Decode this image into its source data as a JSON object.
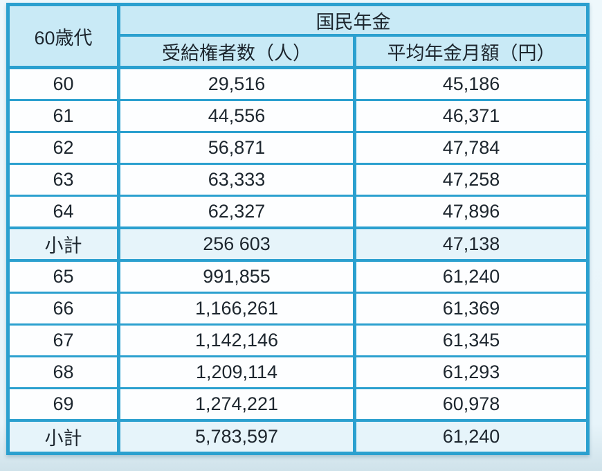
{
  "table": {
    "corner_header": "60歳代",
    "group_header": "国民年金",
    "col_headers": {
      "recipients": "受給権者数（人）",
      "avg_monthly": "平均年金月額（円）"
    },
    "rows": [
      {
        "age": "60",
        "recipients": "29,516",
        "avg_monthly": "45,186"
      },
      {
        "age": "61",
        "recipients": "44,556",
        "avg_monthly": "46,371"
      },
      {
        "age": "62",
        "recipients": "56,871",
        "avg_monthly": "47,784"
      },
      {
        "age": "63",
        "recipients": "63,333",
        "avg_monthly": "47,258"
      },
      {
        "age": "64",
        "recipients": "62,327",
        "avg_monthly": "47,896"
      },
      {
        "age": "小計",
        "recipients": "256 603",
        "avg_monthly": "47,138"
      },
      {
        "age": "65",
        "recipients": "991,855",
        "avg_monthly": "61,240"
      },
      {
        "age": "66",
        "recipients": "1,166,261",
        "avg_monthly": "61,369"
      },
      {
        "age": "67",
        "recipients": "1,142,146",
        "avg_monthly": "61,345"
      },
      {
        "age": "68",
        "recipients": "1,209,114",
        "avg_monthly": "61,293"
      },
      {
        "age": "69",
        "recipients": "1,274,221",
        "avg_monthly": "60,978"
      },
      {
        "age": "小計",
        "recipients": "5,783,597",
        "avg_monthly": "61,240"
      }
    ]
  },
  "colors": {
    "border": "#2ba0cf",
    "header_bg": "#c9eaf6",
    "subtotal_bg": "#e6f4fa",
    "cell_bg": "#fdfeff",
    "page_bg": "#eaf6fb",
    "text": "#1d262e"
  },
  "chart_data": {
    "type": "table",
    "title": "国民年金",
    "corner_label": "60歳代",
    "columns": [
      "60歳代",
      "受給権者数（人）",
      "平均年金月額（円）"
    ],
    "rows": [
      [
        "60",
        "29,516",
        "45,186"
      ],
      [
        "61",
        "44,556",
        "46,371"
      ],
      [
        "62",
        "56,871",
        "47,784"
      ],
      [
        "63",
        "63,333",
        "47,258"
      ],
      [
        "64",
        "62,327",
        "47,896"
      ],
      [
        "小計",
        "256 603",
        "47,138"
      ],
      [
        "65",
        "991,855",
        "61,240"
      ],
      [
        "66",
        "1,166,261",
        "61,369"
      ],
      [
        "67",
        "1,142,146",
        "61,345"
      ],
      [
        "68",
        "1,209,114",
        "61,293"
      ],
      [
        "69",
        "1,274,221",
        "60,978"
      ],
      [
        "小計",
        "5,783,597",
        "61,240"
      ]
    ],
    "subtotal_row_indices": [
      5,
      11
    ]
  }
}
